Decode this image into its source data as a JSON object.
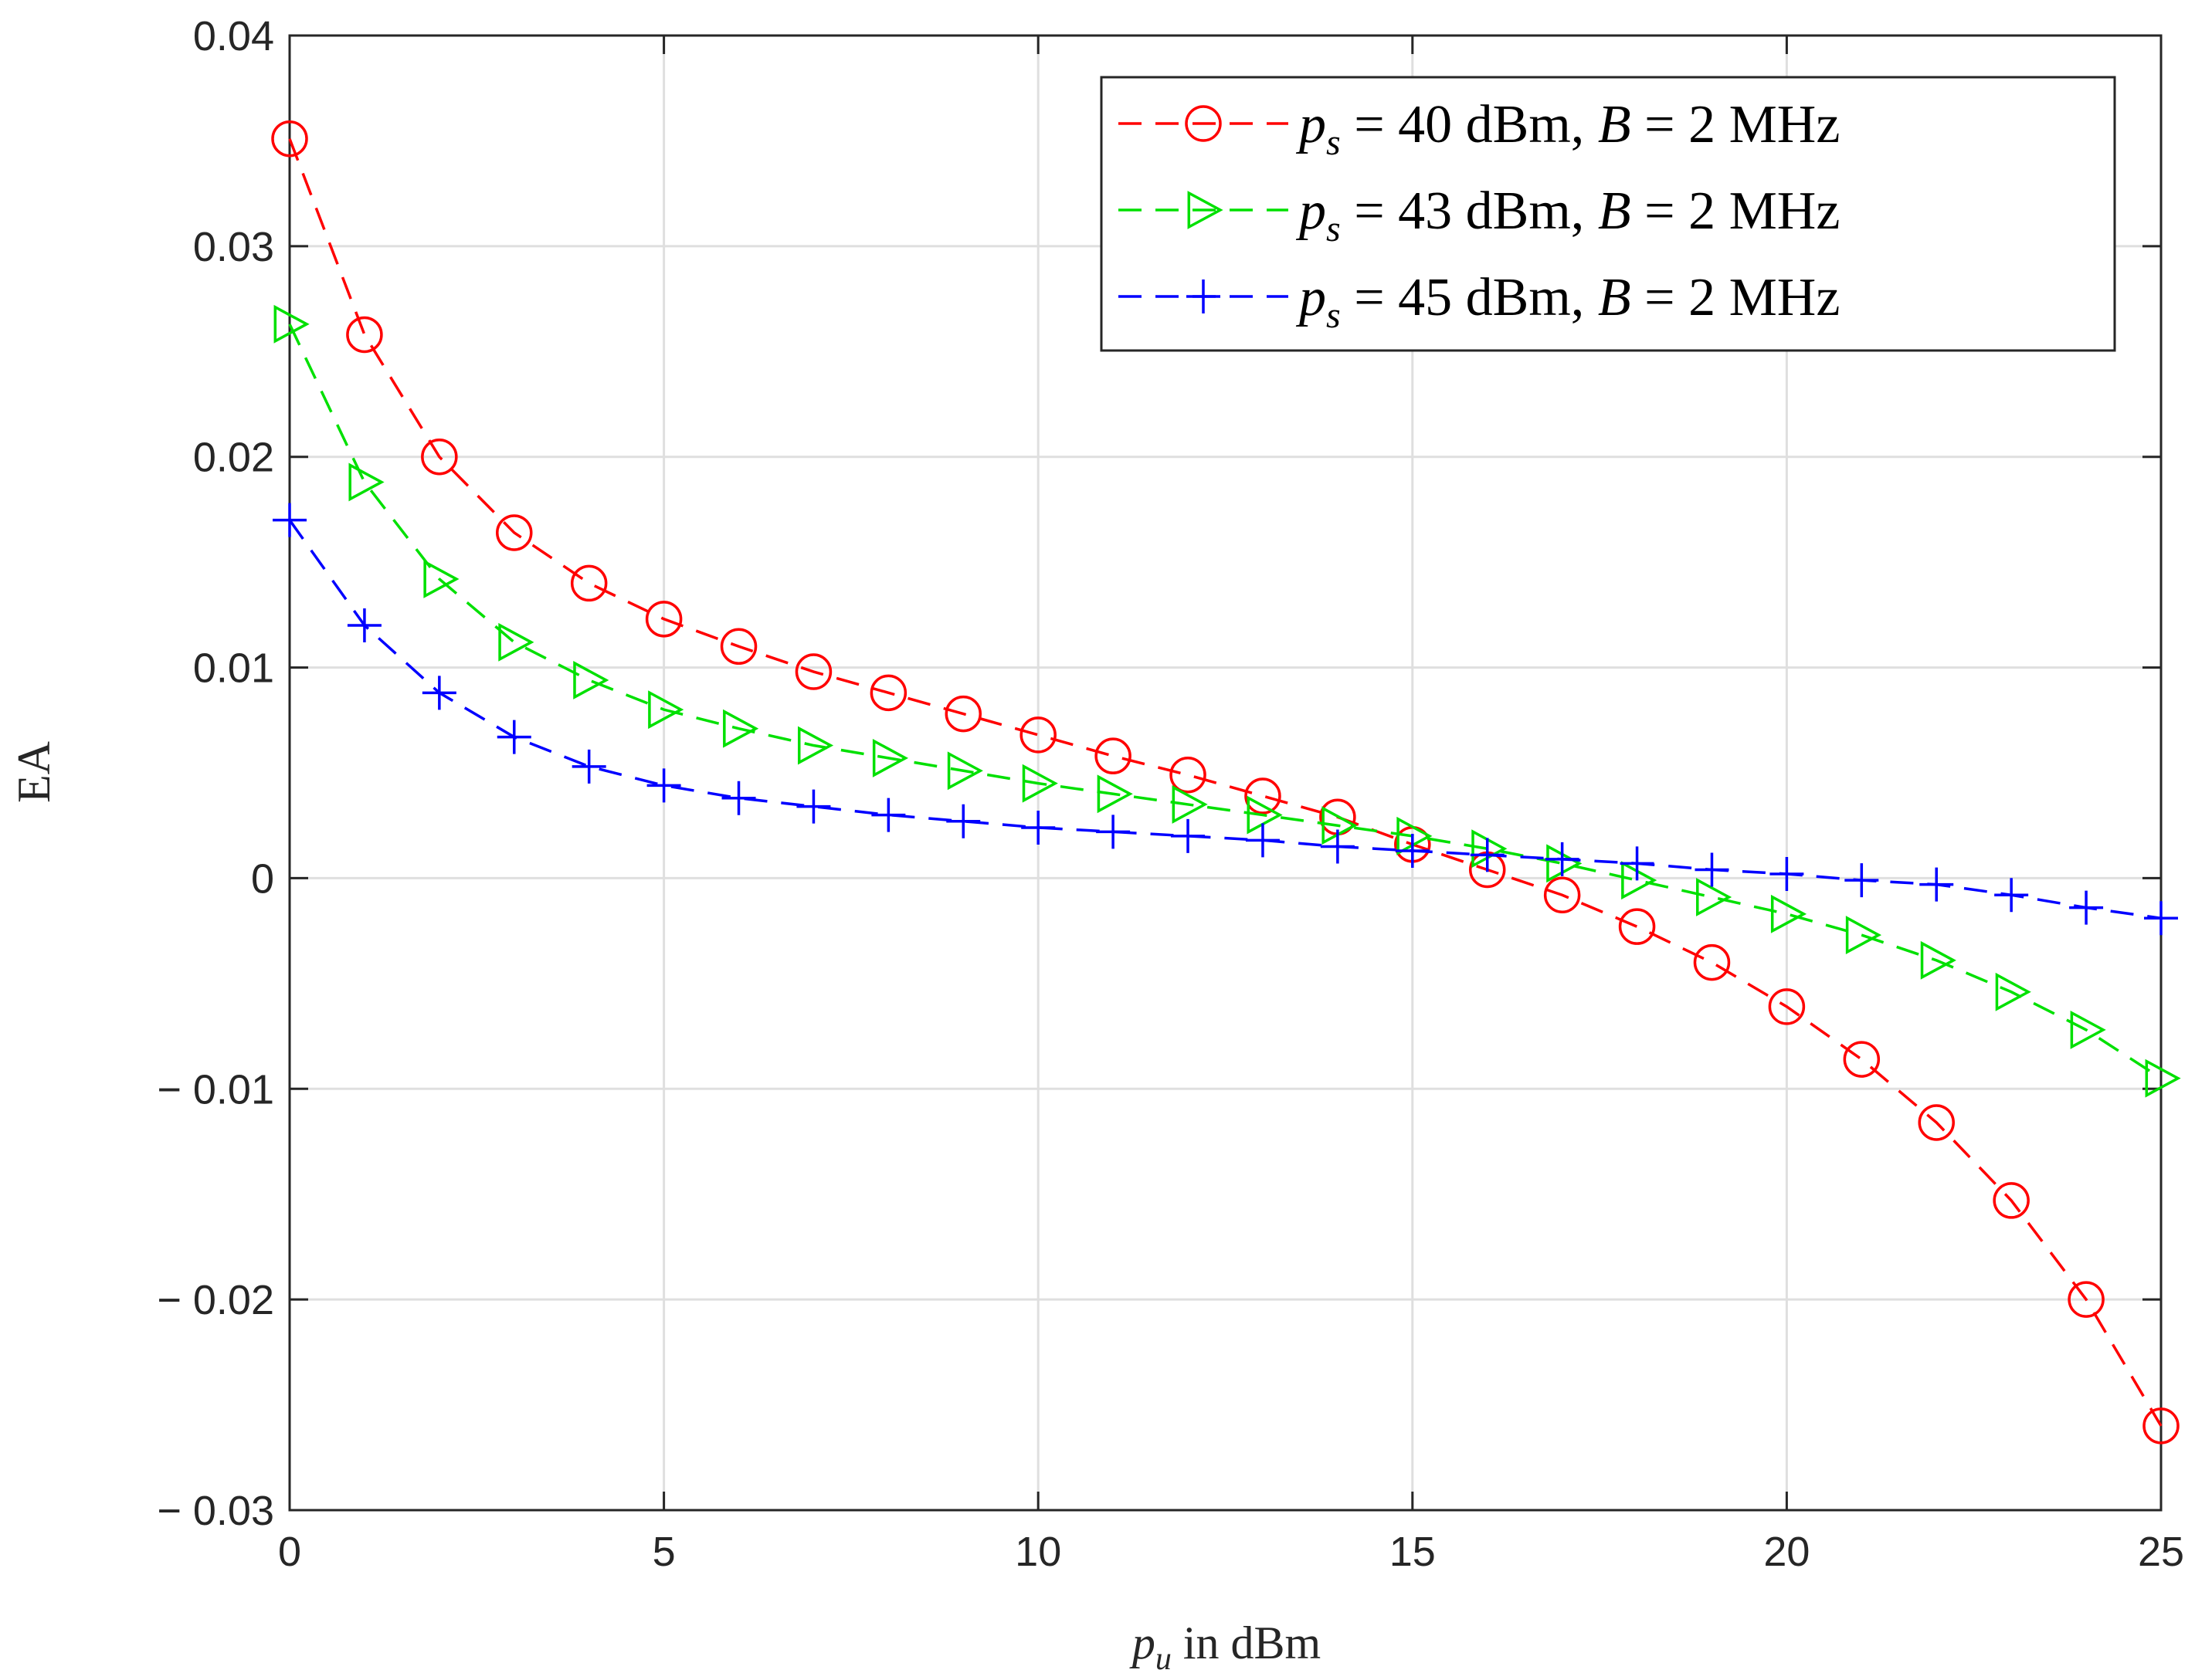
{
  "chart_data": {
    "type": "line",
    "title": "",
    "xlabel": {
      "var": "p",
      "sub": "u",
      "text": " in dBm"
    },
    "ylabel": "EA",
    "xlim": [
      0,
      25
    ],
    "ylim": [
      -0.03,
      0.04
    ],
    "grid": true,
    "legend_position": "top-right",
    "x_ticks": [
      {
        "value": 0,
        "label": "0"
      },
      {
        "value": 5,
        "label": "5"
      },
      {
        "value": 10,
        "label": "10"
      },
      {
        "value": 15,
        "label": "15"
      },
      {
        "value": 20,
        "label": "20"
      },
      {
        "value": 25,
        "label": "25"
      }
    ],
    "y_ticks": [
      {
        "value": 0.04,
        "label": "0.04"
      },
      {
        "value": 0.03,
        "label": "0.03"
      },
      {
        "value": 0.02,
        "label": "0.02"
      },
      {
        "value": 0.01,
        "label": "0.01"
      },
      {
        "value": 0,
        "label": "0"
      },
      {
        "value": -0.01,
        "label": "− 0.01"
      },
      {
        "value": -0.02,
        "label": "− 0.02"
      },
      {
        "value": -0.03,
        "label": "− 0.03"
      }
    ],
    "x": [
      0,
      1,
      2,
      3,
      4,
      5,
      6,
      7,
      8,
      9,
      10,
      11,
      12,
      13,
      14,
      15,
      16,
      17,
      18,
      19,
      20,
      21,
      22,
      23,
      24,
      25
    ],
    "series": [
      {
        "name": "p_s = 40 dBm, B = 2 MHz",
        "legend": {
          "var": "p",
          "sub": "s",
          "eq": " = ",
          "num": "40",
          "unit": " dBm, ",
          "bvar": "B",
          "beq": " = ",
          "bnum": "2",
          "bunit": " MHz"
        },
        "color": "#ff0000",
        "marker": "circle",
        "values": [
          0.0351,
          0.0258,
          0.02,
          0.0164,
          0.014,
          0.0123,
          0.011,
          0.0098,
          0.0088,
          0.0078,
          0.0068,
          0.0058,
          0.0049,
          0.0039,
          0.0029,
          0.0016,
          0.0004,
          -0.0008,
          -0.0023,
          -0.004,
          -0.0061,
          -0.0086,
          -0.0116,
          -0.0153,
          -0.02,
          -0.026
        ]
      },
      {
        "name": "p_s = 43 dBm, B = 2 MHz",
        "legend": {
          "var": "p",
          "sub": "s",
          "eq": " = ",
          "num": "43",
          "unit": " dBm, ",
          "bvar": "B",
          "beq": " = ",
          "bnum": "2",
          "bunit": " MHz"
        },
        "color": "#00e000",
        "marker": "triangle-right",
        "values": [
          0.0263,
          0.0188,
          0.0142,
          0.0112,
          0.0094,
          0.008,
          0.0071,
          0.0063,
          0.0057,
          0.0051,
          0.0045,
          0.004,
          0.0035,
          0.003,
          0.0025,
          0.002,
          0.0014,
          0.0007,
          -0.0001,
          -0.0009,
          -0.0017,
          -0.0027,
          -0.0039,
          -0.0054,
          -0.0072,
          -0.0095
        ]
      },
      {
        "name": "p_s = 45 dBm, B = 2 MHz",
        "legend": {
          "var": "p",
          "sub": "s",
          "eq": " = ",
          "num": "45",
          "unit": " dBm, ",
          "bvar": "B",
          "beq": " = ",
          "bnum": "2",
          "bunit": " MHz"
        },
        "color": "#0000ff",
        "marker": "plus",
        "values": [
          0.017,
          0.012,
          0.0088,
          0.0067,
          0.0053,
          0.0044,
          0.0038,
          0.0034,
          0.003,
          0.0027,
          0.0024,
          0.0022,
          0.002,
          0.0018,
          0.0015,
          0.0013,
          0.0011,
          0.0009,
          0.0007,
          0.0004,
          0.0002,
          -0.0001,
          -0.0003,
          -0.0008,
          -0.0014,
          -0.0019
        ]
      }
    ]
  }
}
